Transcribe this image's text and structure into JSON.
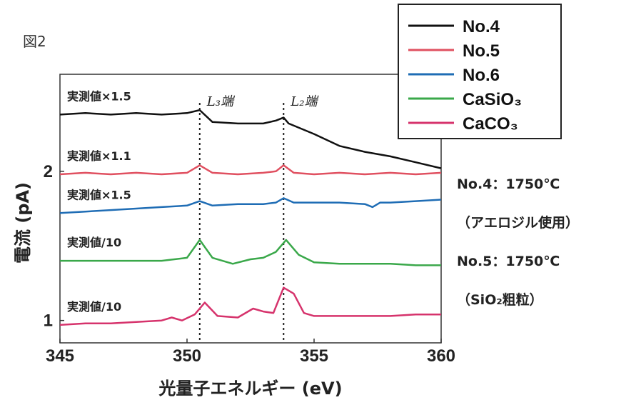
{
  "figure_label": "図2",
  "notes": [
    "No.4：1750℃",
    "（アエロジル使用）",
    "No.5：1750℃",
    "（SiO₂粗粒）"
  ],
  "chart_data": {
    "type": "line",
    "xlabel": "光量子エネルギー (eV)",
    "ylabel": "電流 (pA)",
    "xlim": [
      345,
      360
    ],
    "x_ticks": [
      "345",
      "350",
      "355",
      "360"
    ],
    "y_ticks": [
      "2",
      "1"
    ],
    "y_tick_values": [
      2,
      1
    ],
    "ylim": [
      0.85,
      2.65
    ],
    "grid": false,
    "legend_position": "top-right",
    "edges": [
      {
        "label": "L₃端",
        "x": 350.5
      },
      {
        "label": "L₂端",
        "x": 353.8
      }
    ],
    "series": [
      {
        "name": "No.4",
        "color": "#111111",
        "annotation": "実測値×1.5",
        "points": [
          [
            345,
            2.38
          ],
          [
            346,
            2.39
          ],
          [
            347,
            2.38
          ],
          [
            348,
            2.39
          ],
          [
            349,
            2.38
          ],
          [
            350,
            2.39
          ],
          [
            350.5,
            2.41
          ],
          [
            351,
            2.33
          ],
          [
            352,
            2.32
          ],
          [
            353,
            2.32
          ],
          [
            353.5,
            2.34
          ],
          [
            353.8,
            2.36
          ],
          [
            354,
            2.32
          ],
          [
            355,
            2.25
          ],
          [
            356,
            2.17
          ],
          [
            357,
            2.13
          ],
          [
            358,
            2.1
          ],
          [
            359,
            2.06
          ],
          [
            360,
            2.02
          ]
        ]
      },
      {
        "name": "No.5",
        "color": "#e05060",
        "annotation": "実測値×1.1",
        "points": [
          [
            345,
            1.98
          ],
          [
            346,
            1.99
          ],
          [
            347,
            1.98
          ],
          [
            348,
            1.99
          ],
          [
            349,
            1.98
          ],
          [
            350,
            1.99
          ],
          [
            350.5,
            2.04
          ],
          [
            351,
            1.99
          ],
          [
            352,
            1.98
          ],
          [
            353,
            1.99
          ],
          [
            353.5,
            2.0
          ],
          [
            353.8,
            2.04
          ],
          [
            354.2,
            1.99
          ],
          [
            355,
            1.98
          ],
          [
            356,
            1.99
          ],
          [
            357,
            1.98
          ],
          [
            358,
            1.99
          ],
          [
            359,
            1.98
          ],
          [
            360,
            1.99
          ]
        ]
      },
      {
        "name": "No.6",
        "color": "#1f6db5",
        "annotation": "実測値×1.5",
        "points": [
          [
            345,
            1.72
          ],
          [
            346,
            1.73
          ],
          [
            347,
            1.74
          ],
          [
            348,
            1.75
          ],
          [
            349,
            1.76
          ],
          [
            350,
            1.77
          ],
          [
            350.5,
            1.8
          ],
          [
            351,
            1.77
          ],
          [
            352,
            1.78
          ],
          [
            353,
            1.78
          ],
          [
            353.5,
            1.79
          ],
          [
            353.8,
            1.82
          ],
          [
            354.2,
            1.79
          ],
          [
            355,
            1.79
          ],
          [
            356,
            1.79
          ],
          [
            357,
            1.78
          ],
          [
            357.3,
            1.76
          ],
          [
            357.6,
            1.79
          ],
          [
            358,
            1.79
          ],
          [
            359,
            1.8
          ],
          [
            360,
            1.81
          ]
        ]
      },
      {
        "name": "CaSiO₃",
        "color": "#3aa84a",
        "annotation": "実測値/10",
        "points": [
          [
            345,
            1.4
          ],
          [
            346,
            1.4
          ],
          [
            347,
            1.4
          ],
          [
            348,
            1.4
          ],
          [
            349,
            1.4
          ],
          [
            350,
            1.42
          ],
          [
            350.5,
            1.54
          ],
          [
            351,
            1.42
          ],
          [
            351.8,
            1.38
          ],
          [
            352.5,
            1.41
          ],
          [
            353,
            1.42
          ],
          [
            353.5,
            1.46
          ],
          [
            353.9,
            1.54
          ],
          [
            354.4,
            1.44
          ],
          [
            355,
            1.39
          ],
          [
            356,
            1.38
          ],
          [
            357,
            1.38
          ],
          [
            358,
            1.38
          ],
          [
            359,
            1.37
          ],
          [
            360,
            1.37
          ]
        ]
      },
      {
        "name": "CaCO₃",
        "color": "#d6336c",
        "annotation": "実測値/10",
        "points": [
          [
            345,
            0.97
          ],
          [
            346,
            0.98
          ],
          [
            347,
            0.98
          ],
          [
            348,
            0.99
          ],
          [
            349,
            1.0
          ],
          [
            349.4,
            1.02
          ],
          [
            349.8,
            1.0
          ],
          [
            350.3,
            1.04
          ],
          [
            350.7,
            1.12
          ],
          [
            351.2,
            1.03
          ],
          [
            352,
            1.02
          ],
          [
            352.6,
            1.08
          ],
          [
            353,
            1.06
          ],
          [
            353.4,
            1.05
          ],
          [
            353.8,
            1.22
          ],
          [
            354.2,
            1.18
          ],
          [
            354.6,
            1.05
          ],
          [
            355,
            1.03
          ],
          [
            356,
            1.03
          ],
          [
            357,
            1.03
          ],
          [
            358,
            1.03
          ],
          [
            359,
            1.04
          ],
          [
            360,
            1.04
          ]
        ]
      }
    ]
  }
}
